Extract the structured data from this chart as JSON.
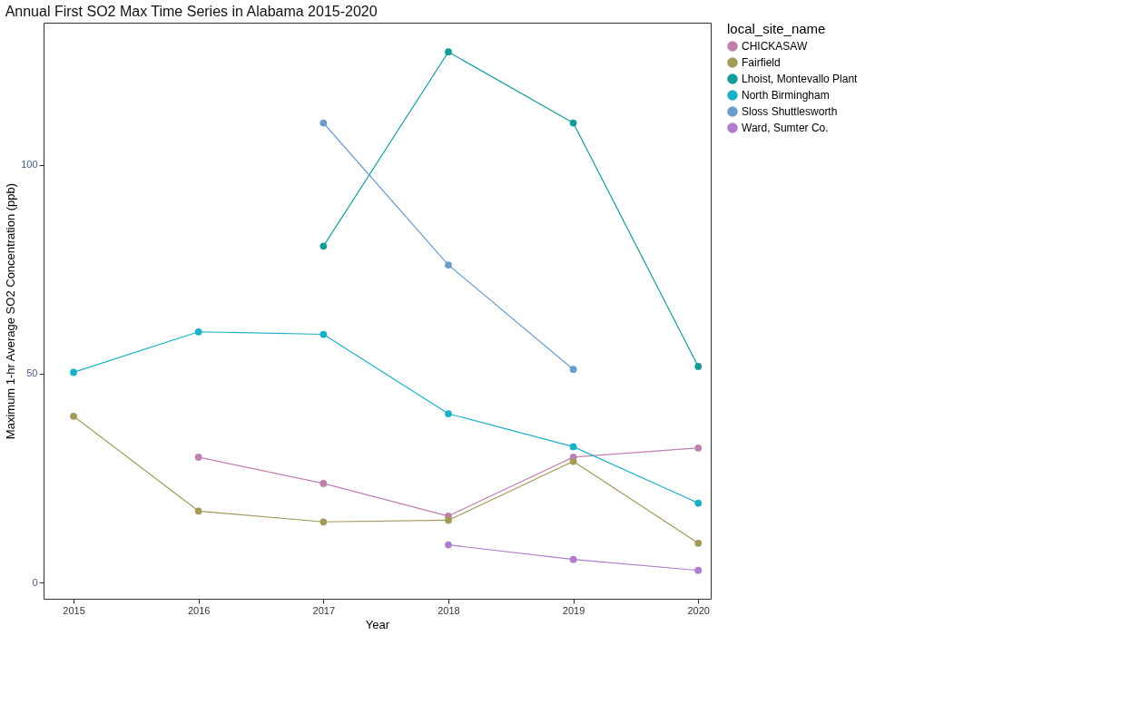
{
  "chart_data": {
    "type": "line",
    "title": "Annual First SO2 Max Time Series in Alabama 2015-2020",
    "xlabel": "Year",
    "ylabel": "Maximum 1-hr Average SO2 Concentration (ppb)",
    "legend_title": "local_site_name",
    "x": [
      2015,
      2016,
      2017,
      2018,
      2019,
      2020
    ],
    "series": [
      {
        "name": "CHICKASAW",
        "color": "#c07fb0",
        "values": [
          null,
          30,
          23.7,
          15.9,
          30,
          32.2
        ]
      },
      {
        "name": "Fairfield",
        "color": "#a39a5a",
        "values": [
          39.8,
          17.1,
          14.5,
          14.9,
          29,
          9.4
        ]
      },
      {
        "name": "Lhoist, Montevallo Plant",
        "color": "#139c9a",
        "values": [
          null,
          null,
          80.5,
          127,
          110,
          51.7
        ]
      },
      {
        "name": "North Birmingham",
        "color": "#1ab0c8",
        "values": [
          50.3,
          60,
          59.4,
          40.4,
          32.5,
          19
        ]
      },
      {
        "name": "Sloss Shuttlesworth",
        "color": "#6a9ccc",
        "values": [
          null,
          null,
          110,
          76,
          51,
          null
        ]
      },
      {
        "name": "Ward, Sumter Co.",
        "color": "#b07ccc",
        "values": [
          null,
          null,
          null,
          9,
          5.5,
          2.9
        ]
      }
    ],
    "xlim": [
      2014.76,
      2020.1
    ],
    "xticks": [
      2015,
      2016,
      2017,
      2018,
      2019,
      2020
    ],
    "ylim": [
      -3.9,
      134
    ],
    "yticks": [
      0,
      50,
      100
    ],
    "grid": false,
    "legend": "right",
    "marker": "circle",
    "line_style": "solid"
  }
}
